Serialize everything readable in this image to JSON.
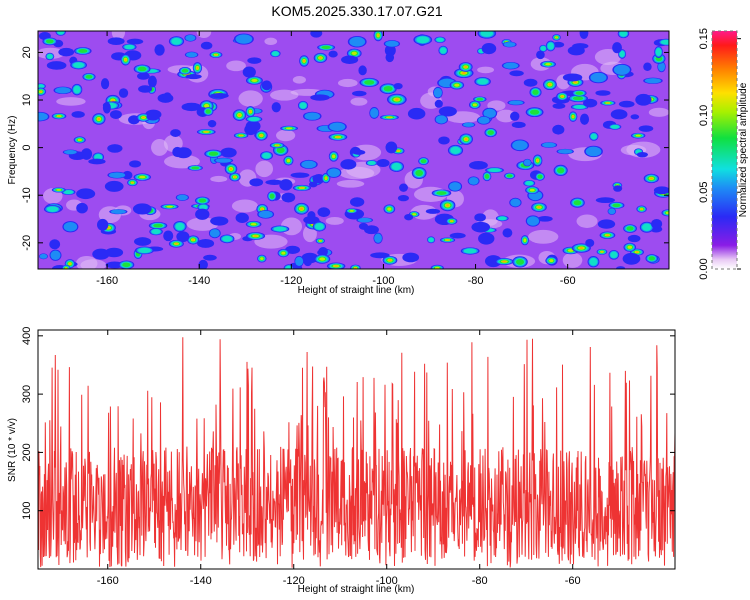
{
  "title": "KOM5.2025.330.17.07.G21",
  "chart_data": [
    {
      "type": "heatmap",
      "xlabel": "Height of straight line (km)",
      "ylabel": "Frequency (Hz)",
      "xlim": [
        -175,
        -38
      ],
      "ylim": [
        -25.5,
        24.5
      ],
      "xticks": [
        -160,
        -140,
        -120,
        -100,
        -80,
        -60
      ],
      "yticks": [
        -20,
        -10,
        0,
        10,
        20
      ],
      "colorbar": {
        "label": "Normalized spectral amplitude",
        "range": [
          0.0,
          0.155
        ],
        "ticks": [
          0.0,
          0.05,
          0.1,
          0.15
        ],
        "tick_labels": [
          "0.00",
          "0.05",
          "0.10",
          "0.15"
        ]
      },
      "grid": false,
      "description_values": {
        "background_level": 0.02,
        "typical_peak_level": 0.07,
        "max_level": 0.15
      }
    },
    {
      "type": "line",
      "xlabel": "Height of straight line (km)",
      "ylabel": "SNR (10 * v/v)",
      "xlim": [
        -175,
        -38
      ],
      "ylim": [
        0,
        410
      ],
      "xticks": [
        -160,
        -140,
        -120,
        -100,
        -80,
        -60
      ],
      "yticks": [
        100,
        200,
        300,
        400
      ],
      "series": [
        {
          "name": "SNR",
          "color": "#ee3333",
          "baseline_mean": 110,
          "min": 2,
          "max": 408
        }
      ],
      "grid": false
    }
  ],
  "colors": {
    "line": "#ee3333",
    "frame": "#000000"
  }
}
